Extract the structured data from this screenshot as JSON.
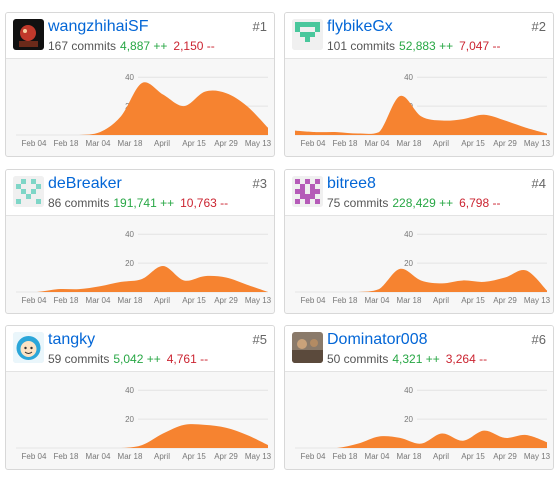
{
  "colors": {
    "link": "#0366d6",
    "additions": "#28a745",
    "deletions": "#cb2431",
    "area_fill": "#f68330"
  },
  "x_ticks": [
    "Feb 04",
    "Feb 18",
    "Mar 04",
    "Mar 18",
    "April",
    "Apr 15",
    "Apr 29",
    "May 13"
  ],
  "y_ticks": [
    "40",
    "20"
  ],
  "contributors": [
    {
      "rank": "#1",
      "username": "wangzhihaiSF",
      "commits": "167 commits",
      "additions": "4,887 ++",
      "deletions": "2,150 --",
      "avatar": "game-character-avatar",
      "chart_data": {
        "type": "area",
        "x": [
          "Feb 04",
          "Feb 18",
          "Mar 04",
          "Mar 18",
          "Mar 25",
          "April",
          "Apr 08",
          "Apr 15",
          "Apr 22",
          "Apr 29",
          "May 06",
          "May 13",
          "May 20"
        ],
        "values": [
          0,
          0,
          0,
          0,
          2,
          13,
          36,
          28,
          20,
          30,
          29,
          20,
          5
        ],
        "ylim": [
          0,
          45
        ]
      }
    },
    {
      "rank": "#2",
      "username": "flybikeGx",
      "commits": "101 commits",
      "additions": "52,883 ++",
      "deletions": "7,047 --",
      "avatar": "identicon-green",
      "chart_data": {
        "type": "area",
        "x": [
          "Feb 04",
          "Feb 18",
          "Mar 04",
          "Mar 18",
          "Mar 25",
          "April",
          "Apr 08",
          "Apr 15",
          "Apr 22",
          "Apr 29",
          "May 06",
          "May 13",
          "May 20"
        ],
        "values": [
          3,
          2,
          2,
          1,
          2,
          27,
          13,
          10,
          11,
          14,
          10,
          5,
          1
        ],
        "ylim": [
          0,
          45
        ]
      }
    },
    {
      "rank": "#3",
      "username": "deBreaker",
      "commits": "86 commits",
      "additions": "191,741 ++",
      "deletions": "10,763 --",
      "avatar": "identicon-teal",
      "chart_data": {
        "type": "area",
        "x": [
          "Feb 04",
          "Feb 18",
          "Mar 04",
          "Mar 18",
          "Mar 25",
          "April",
          "Apr 08",
          "Apr 15",
          "Apr 22",
          "Apr 29",
          "May 06",
          "May 13",
          "May 20"
        ],
        "values": [
          0,
          0,
          2,
          2,
          4,
          7,
          9,
          18,
          8,
          11,
          10,
          5,
          0
        ],
        "ylim": [
          0,
          45
        ]
      }
    },
    {
      "rank": "#4",
      "username": "bitree8",
      "commits": "75 commits",
      "additions": "228,429 ++",
      "deletions": "6,798 --",
      "avatar": "identicon-purple",
      "chart_data": {
        "type": "area",
        "x": [
          "Feb 04",
          "Feb 18",
          "Mar 04",
          "Mar 18",
          "Mar 25",
          "April",
          "Apr 08",
          "Apr 15",
          "Apr 22",
          "Apr 29",
          "May 06",
          "May 13",
          "May 20"
        ],
        "values": [
          0,
          0,
          0,
          0,
          2,
          16,
          8,
          6,
          8,
          7,
          10,
          15,
          1
        ],
        "ylim": [
          0,
          45
        ]
      }
    },
    {
      "rank": "#5",
      "username": "tangky",
      "commits": "59 commits",
      "additions": "5,042 ++",
      "deletions": "4,761 --",
      "avatar": "cartoon-face-avatar",
      "chart_data": {
        "type": "area",
        "x": [
          "Feb 04",
          "Feb 18",
          "Mar 04",
          "Mar 18",
          "Mar 25",
          "April",
          "Apr 08",
          "Apr 15",
          "Apr 22",
          "Apr 29",
          "May 06",
          "May 13",
          "May 20"
        ],
        "values": [
          0,
          0,
          0,
          0,
          0,
          0,
          2,
          10,
          16,
          16,
          14,
          9,
          2
        ],
        "ylim": [
          0,
          45
        ]
      }
    },
    {
      "rank": "#6",
      "username": "Dominator008",
      "commits": "50 commits",
      "additions": "4,321 ++",
      "deletions": "3,264 --",
      "avatar": "photo-avatar",
      "chart_data": {
        "type": "area",
        "x": [
          "Feb 04",
          "Feb 18",
          "Mar 04",
          "Mar 18",
          "Mar 25",
          "April",
          "Apr 08",
          "Apr 15",
          "Apr 22",
          "Apr 29",
          "May 06",
          "May 13",
          "May 20"
        ],
        "values": [
          0,
          0,
          0,
          3,
          8,
          7,
          3,
          10,
          5,
          12,
          7,
          9,
          4
        ],
        "ylim": [
          0,
          45
        ]
      }
    }
  ]
}
